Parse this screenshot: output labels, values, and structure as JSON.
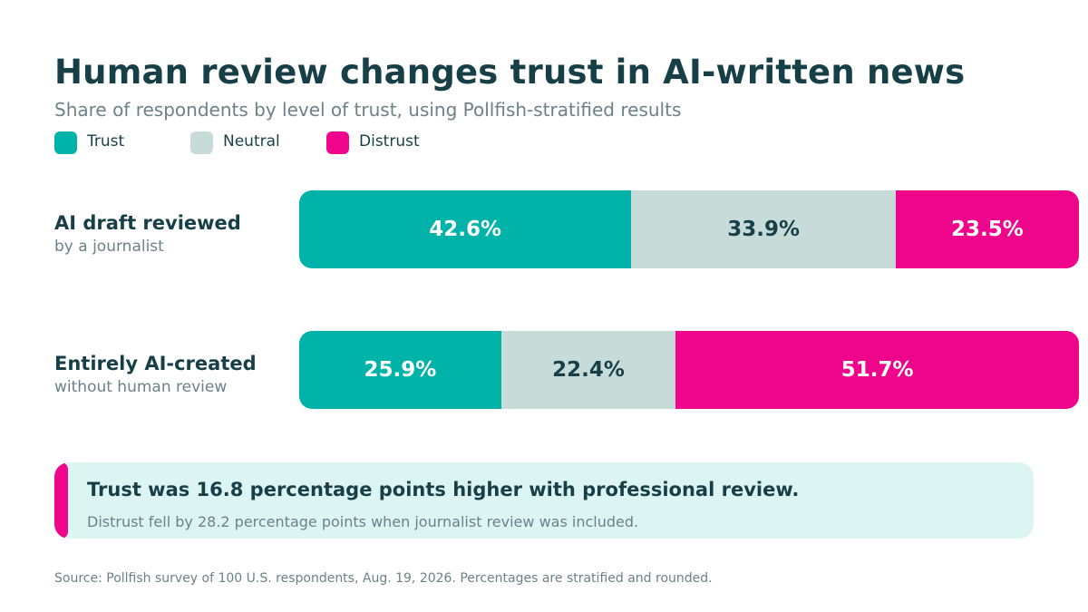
{
  "chart_data": {
    "type": "bar",
    "stacked": true,
    "orientation": "horizontal",
    "title": "Human review changes trust in AI-written news",
    "subtitle": "Share of respondents by level of trust, using Pollfish-stratified results",
    "categories": [
      {
        "title": "AI draft reviewed",
        "subtitle": "by a journalist"
      },
      {
        "title": "Entirely AI-created",
        "subtitle": "without human review"
      }
    ],
    "series": [
      {
        "name": "Trust",
        "color": "#00b3a8",
        "text_color": "#ffffff",
        "values": [
          42.6,
          25.9
        ],
        "labels": [
          "42.6%",
          "25.9%"
        ]
      },
      {
        "name": "Neutral",
        "color": "#c7dbd9",
        "text_color": "#173f47",
        "values": [
          33.9,
          22.4
        ],
        "labels": [
          "33.9%",
          "22.4%"
        ]
      },
      {
        "name": "Distrust",
        "color": "#ee058c",
        "text_color": "#ffffff",
        "values": [
          23.5,
          51.7
        ],
        "labels": [
          "23.5%",
          "51.7%"
        ]
      }
    ],
    "legend_position": "top-left",
    "grid": false
  },
  "callout": {
    "headline": "Trust was 16.8 percentage points higher with professional review.",
    "body": "Distrust fell by 28.2 percentage points when journalist review was included.",
    "accent_color": "#ee058c"
  },
  "source": "Source: Pollfish survey of 100 U.S. respondents, Aug. 19, 2026. Percentages are stratified and rounded."
}
